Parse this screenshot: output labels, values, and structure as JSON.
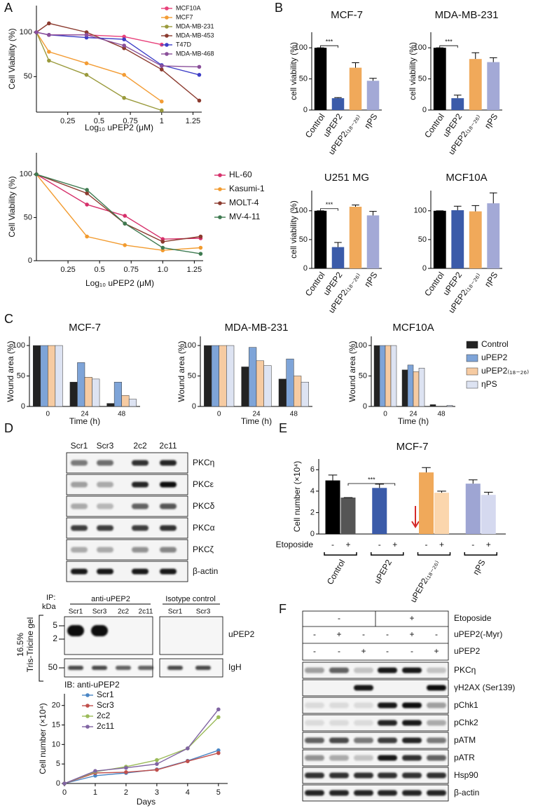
{
  "panel_labels": [
    "A",
    "B",
    "C",
    "D",
    "E",
    "F"
  ],
  "chart_data": [
    {
      "type": "line",
      "ylabel": "Cell Viability (%)",
      "xlabel": "Log₁₀ uPEP2 (μM)",
      "x": [
        0,
        0.1,
        0.4,
        0.7,
        1,
        1.3
      ],
      "xlim": [
        0,
        1.32
      ],
      "xticks": [
        0.25,
        0.5,
        0.75,
        1,
        1.25
      ],
      "ylim": [
        10,
        130
      ],
      "yticks": [
        50,
        100
      ],
      "legend": "upper right",
      "series": [
        {
          "name": "MCF10A",
          "color": "#e8407a",
          "values": [
            100,
            97,
            97,
            95,
            86,
            null
          ]
        },
        {
          "name": "MCF7",
          "color": "#f39c34",
          "values": [
            100,
            78,
            65,
            52,
            22,
            null
          ]
        },
        {
          "name": "MDA-MB-231",
          "color": "#9a9a3c",
          "values": [
            100,
            68,
            52,
            26,
            12,
            null
          ]
        },
        {
          "name": "MDA-MB-453",
          "color": "#8b3a2e",
          "values": [
            100,
            110,
            100,
            82,
            58,
            23
          ]
        },
        {
          "name": "T47D",
          "color": "#3d3ec7",
          "values": [
            100,
            97,
            94,
            92,
            63,
            52
          ]
        },
        {
          "name": "MDA-MB-468",
          "color": "#8a4f9a",
          "values": [
            100,
            97,
            97,
            85,
            62,
            61
          ]
        }
      ]
    },
    {
      "type": "line",
      "ylabel": "Cell Viability (%)",
      "xlabel": "Log₁₀ uPEP2 (μM)",
      "x": [
        0,
        0.4,
        0.7,
        1,
        1.3
      ],
      "xlim": [
        0,
        1.32
      ],
      "xticks": [
        0.25,
        0.5,
        0.75,
        {
          "value": 1,
          "label": "1.0"
        },
        1.25
      ],
      "ylim": [
        0,
        125
      ],
      "yticks": [
        0,
        50,
        100
      ],
      "legend": "right",
      "series": [
        {
          "name": "HL-60",
          "color": "#d62f6a",
          "values": [
            100,
            65,
            52,
            25,
            26
          ]
        },
        {
          "name": "Kasumi-1",
          "color": "#f29b2f",
          "values": [
            100,
            28,
            18,
            12,
            15
          ]
        },
        {
          "name": "MOLT-4",
          "color": "#8b3a2e",
          "values": [
            100,
            78,
            43,
            22,
            28
          ]
        },
        {
          "name": "MV-4-11",
          "color": "#3e7a50",
          "values": [
            100,
            82,
            43,
            15,
            8
          ]
        }
      ]
    },
    {
      "type": "bar",
      "title": "MCF-7",
      "ylabel": "cell viability (%)",
      "categories": [
        "Control",
        "uPEP2",
        "uPEP2₍₁₈₋₂₆₎",
        "ηPS"
      ],
      "values": [
        100,
        19,
        68,
        47
      ],
      "errors": [
        0,
        1,
        8,
        4
      ],
      "colors": [
        "#000000",
        "#3b5ba9",
        "#f0a95a",
        "#a3a9d6"
      ],
      "ylim": [
        0,
        125
      ],
      "yticks": [
        0,
        50,
        100
      ],
      "annotations": [
        "***"
      ]
    },
    {
      "type": "bar",
      "title": "MDA-MB-231",
      "ylabel": "cell viability (%)",
      "categories": [
        "Control",
        "uPEP2",
        "uPEP2₍₁₈₋₂₆₎",
        "ηPS"
      ],
      "values": [
        100,
        19,
        82,
        77
      ],
      "errors": [
        0,
        5,
        10,
        7
      ],
      "colors": [
        "#000000",
        "#3b5ba9",
        "#f0a95a",
        "#a3a9d6"
      ],
      "ylim": [
        0,
        125
      ],
      "yticks": [
        0,
        50,
        100
      ],
      "annotations": [
        "***"
      ]
    },
    {
      "type": "bar",
      "title": "U251 MG",
      "ylabel": "cell viability (%)",
      "categories": [
        "Control",
        "uPEP2",
        "uPEP2₍₁₈₋₂₆₎",
        "ηPS"
      ],
      "values": [
        100,
        37,
        107,
        92
      ],
      "errors": [
        0,
        8,
        3,
        7
      ],
      "colors": [
        "#000000",
        "#3b5ba9",
        "#f0a95a",
        "#a3a9d6"
      ],
      "ylim": [
        0,
        135
      ],
      "yticks": [
        0,
        50,
        100
      ],
      "annotations": [
        "***"
      ]
    },
    {
      "type": "bar",
      "title": "MCF10A",
      "categories": [
        "Control",
        "uPEP2",
        "uPEP2₍₁₈₋₂₆₎",
        "ηPS"
      ],
      "values": [
        100,
        101,
        99,
        113
      ],
      "errors": [
        0,
        7,
        10,
        18
      ],
      "colors": [
        "#000000",
        "#3b5ba9",
        "#f0a95a",
        "#a3a9d6"
      ],
      "ylim": [
        0,
        135
      ],
      "yticks": [
        0,
        50,
        100
      ]
    },
    {
      "type": "bar",
      "title": "MCF-7",
      "ylabel": "Wound area (%)",
      "xlabel": "Time (h)",
      "categories": [
        "0",
        "24",
        "48"
      ],
      "ylim": [
        0,
        115
      ],
      "yticks": [
        0,
        50,
        100
      ],
      "series": [
        {
          "color": "#222222",
          "values": [
            100,
            40,
            5
          ]
        },
        {
          "color": "#7ea4d8",
          "values": [
            100,
            72,
            40
          ]
        },
        {
          "color": "#f6cba2",
          "values": [
            100,
            48,
            18
          ]
        },
        {
          "color": "#dde3f2",
          "values": [
            100,
            45,
            12
          ]
        }
      ]
    },
    {
      "type": "bar",
      "title": "MDA-MB-231",
      "ylabel": "Wound area (%)",
      "xlabel": "Time (h)",
      "categories": [
        "0",
        "24",
        "48"
      ],
      "ylim": [
        0,
        115
      ],
      "yticks": [
        0,
        50,
        100
      ],
      "series": [
        {
          "color": "#222222",
          "values": [
            100,
            65,
            45
          ]
        },
        {
          "color": "#7ea4d8",
          "values": [
            100,
            97,
            78
          ]
        },
        {
          "color": "#f6cba2",
          "values": [
            100,
            75,
            50
          ]
        },
        {
          "color": "#dde3f2",
          "values": [
            100,
            67,
            40
          ]
        }
      ]
    },
    {
      "type": "bar",
      "title": "MCF10A",
      "ylabel": "Wound area (%)",
      "xlabel": "Time (h)",
      "categories": [
        "0",
        "24",
        "48"
      ],
      "ylim": [
        0,
        115
      ],
      "yticks": [
        0,
        50,
        100
      ],
      "legend": "right",
      "series": [
        {
          "name": "Control",
          "color": "#222222",
          "values": [
            100,
            60,
            3
          ]
        },
        {
          "name": "uPEP2",
          "color": "#7ea4d8",
          "values": [
            100,
            68,
            0
          ]
        },
        {
          "name": "uPEP2₍₁₈₋₂₆₎",
          "color": "#f6cba2",
          "values": [
            100,
            57,
            0
          ]
        },
        {
          "name": "ηPS",
          "color": "#dde3f2",
          "values": [
            100,
            63,
            2
          ]
        }
      ]
    },
    {
      "type": "line",
      "ylabel": "Cell number (×10⁴)",
      "xlabel": "Days",
      "x": [
        0,
        1,
        2,
        3,
        4,
        5
      ],
      "xlim": [
        0,
        5.3
      ],
      "xticks": [
        0,
        1,
        2,
        3,
        4,
        5
      ],
      "ylim": [
        0,
        23
      ],
      "yticks": [
        0,
        5,
        10,
        15,
        20
      ],
      "legend": "upper left",
      "series": [
        {
          "name": "Scr1",
          "color": "#4a86c5",
          "values": [
            0,
            2,
            2.7,
            3.6,
            5.8,
            8.5
          ]
        },
        {
          "name": "Scr3",
          "color": "#c0504d",
          "values": [
            0,
            2.7,
            2.9,
            3.5,
            5.7,
            7.8
          ]
        },
        {
          "name": "2c2",
          "color": "#9bbb59",
          "values": [
            0,
            3,
            4.3,
            6,
            9,
            17
          ]
        },
        {
          "name": "2c11",
          "color": "#8064a2",
          "values": [
            0,
            3.2,
            4,
            5,
            9,
            19
          ]
        }
      ]
    },
    {
      "type": "bar",
      "title": "MCF-7",
      "ylabel": "Cell number (×10⁴)",
      "row_label": "Etoposide",
      "groups": [
        "Control",
        "uPEP2",
        "uPEP2₍₁₈₋₂₆₎",
        "ηPS"
      ],
      "categories": [
        "-",
        "+",
        "-",
        "+",
        "-",
        "+",
        "-",
        "+"
      ],
      "values": [
        5,
        3.4,
        4.3,
        0,
        5.75,
        3.85,
        4.7,
        3.65
      ],
      "errors": [
        0.5,
        0,
        0.35,
        0,
        0.45,
        0.15,
        0.35,
        0.25
      ],
      "colors": [
        "#000000",
        "#555555",
        "#3b5ba9",
        "#3b5ba9",
        "#f0a95a",
        "#fbd6ad",
        "#9ea5d3",
        "#d5d9ef"
      ],
      "ylim": [
        0,
        7
      ],
      "yticks": [
        0,
        2,
        4,
        6
      ],
      "annotations": [
        "***"
      ]
    }
  ],
  "blot_D": {
    "lanes": [
      "Scr1",
      "Scr3",
      "2c2",
      "2c11"
    ],
    "rows": [
      "PKCη",
      "PKCε",
      "PKCδ",
      "PKCα",
      "PKCζ",
      "β-actin"
    ]
  },
  "ip_blot": {
    "ip_label": "IP:",
    "kda_label": "kDa",
    "groups": [
      "anti-uPEP2",
      "Isotype control"
    ],
    "lanes": [
      "Scr1",
      "Scr3",
      "2c2",
      "2c11",
      "Scr1",
      "Scr3"
    ],
    "markers": [
      5,
      2,
      50
    ],
    "gel_label": [
      "16.5%",
      "Tris-Tricine gel"
    ],
    "rows": [
      "uPEP2",
      "IgH"
    ],
    "ib_label": "IB: anti-uPEP2"
  },
  "blot_F": {
    "header": {
      "label": "Etoposide",
      "values": [
        "-",
        "+"
      ]
    },
    "rows": [
      {
        "label": "uPEP2(-Myr)",
        "cells": [
          "-",
          "+",
          "-",
          "-",
          "+",
          "-"
        ]
      },
      {
        "label": "uPEP2",
        "cells": [
          "-",
          "-",
          "+",
          "-",
          "-",
          "+"
        ]
      }
    ],
    "blots": [
      "PKCη",
      "γH2AX (Ser139)",
      "pChk1",
      "pChk2",
      "pATM",
      "pATR",
      "Hsp90",
      "β-actin"
    ]
  }
}
